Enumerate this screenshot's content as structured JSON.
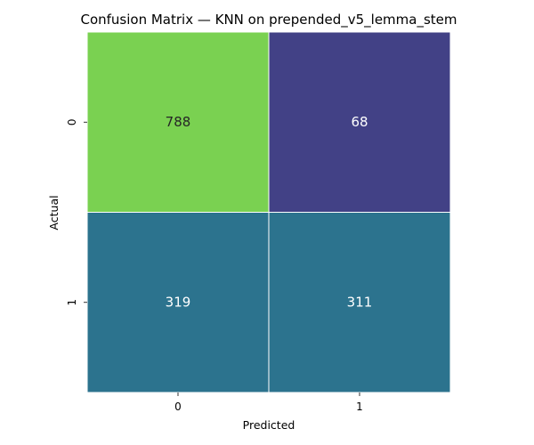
{
  "chart_data": {
    "type": "heatmap",
    "title": "Confusion Matrix — KNN on prepended_v5_lemma_stem",
    "xlabel": "Predicted",
    "ylabel": "Actual",
    "x_categories": [
      "0",
      "1"
    ],
    "y_categories": [
      "0",
      "1"
    ],
    "values": [
      [
        788,
        68
      ],
      [
        319,
        311
      ]
    ],
    "colormap": "viridis",
    "colorbar": false,
    "cell_colors": [
      [
        "#7ad151",
        "#424186"
      ],
      [
        "#2c738e",
        "#2c738e"
      ]
    ],
    "label_colors": [
      [
        "#262626",
        "#ffffff"
      ],
      [
        "#ffffff",
        "#ffffff"
      ]
    ],
    "grid_line_color": "#ffffff"
  }
}
